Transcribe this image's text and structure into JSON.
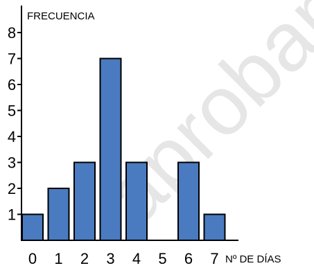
{
  "chart_data": {
    "type": "bar",
    "categories": [
      "0",
      "1",
      "2",
      "3",
      "4",
      "5",
      "6",
      "7"
    ],
    "values": [
      1,
      2,
      3,
      7,
      3,
      0,
      3,
      1
    ],
    "xlabel": "Nº DE DÍAS",
    "ylabel": "FRECUENCIA",
    "ylim": [
      0,
      8
    ],
    "yticks": [
      "1",
      "2",
      "3",
      "4",
      "5",
      "6",
      "7",
      "8"
    ],
    "grid": false,
    "bar_color": "#4a7bc0",
    "bar_edge_color": "#000000"
  },
  "watermark": "aprobamos"
}
